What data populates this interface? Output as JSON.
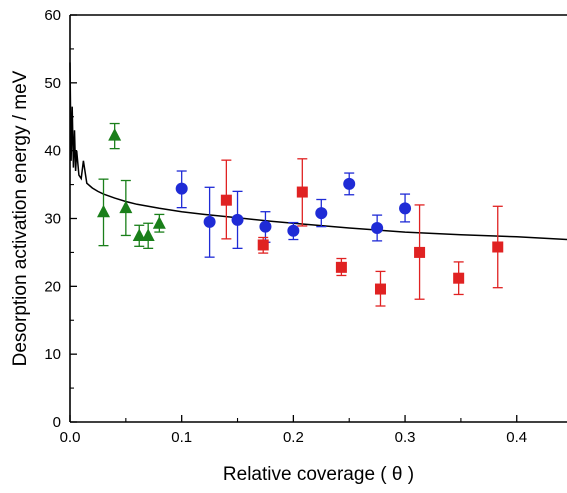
{
  "chart_data": {
    "type": "scatter",
    "xlabel": "Relative coverage ( θ )",
    "ylabel": "Desorption activation energy / meV",
    "xlim": [
      0,
      0.445
    ],
    "ylim": [
      0,
      60
    ],
    "x_ticks": [
      0.0,
      0.1,
      0.2,
      0.3,
      0.4
    ],
    "x_tick_labels": [
      "0.0",
      "0.1",
      "0.2",
      "0.3",
      "0.4"
    ],
    "y_ticks": [
      0,
      10,
      20,
      30,
      40,
      50,
      60
    ],
    "y_tick_labels": [
      "0",
      "10",
      "20",
      "30",
      "40",
      "50",
      "60"
    ],
    "grid": false,
    "series": [
      {
        "marker": "triangle",
        "color": "#1a7f1a",
        "points": [
          {
            "x": 0.03,
            "y": 31.0,
            "lo": 26.0,
            "hi": 35.8
          },
          {
            "x": 0.04,
            "y": 42.3,
            "lo": 40.3,
            "hi": 44.0
          },
          {
            "x": 0.05,
            "y": 31.6,
            "lo": 27.5,
            "hi": 35.6
          },
          {
            "x": 0.062,
            "y": 27.5,
            "lo": 25.9,
            "hi": 29.0
          },
          {
            "x": 0.07,
            "y": 27.5,
            "lo": 25.6,
            "hi": 29.3
          },
          {
            "x": 0.08,
            "y": 29.3,
            "lo": 28.0,
            "hi": 30.6
          }
        ]
      },
      {
        "marker": "circle",
        "color": "#1f2bd6",
        "points": [
          {
            "x": 0.1,
            "y": 34.4,
            "lo": 31.6,
            "hi": 37.0
          },
          {
            "x": 0.125,
            "y": 29.5,
            "lo": 24.3,
            "hi": 34.6
          },
          {
            "x": 0.15,
            "y": 29.8,
            "lo": 25.6,
            "hi": 34.0
          },
          {
            "x": 0.175,
            "y": 28.8,
            "lo": 26.5,
            "hi": 31.0
          },
          {
            "x": 0.2,
            "y": 28.2,
            "lo": 26.9,
            "hi": 29.4
          },
          {
            "x": 0.225,
            "y": 30.8,
            "lo": 28.8,
            "hi": 32.8
          },
          {
            "x": 0.25,
            "y": 35.1,
            "lo": 33.5,
            "hi": 36.7
          },
          {
            "x": 0.275,
            "y": 28.6,
            "lo": 26.7,
            "hi": 30.5
          },
          {
            "x": 0.3,
            "y": 31.5,
            "lo": 29.5,
            "hi": 33.6
          }
        ]
      },
      {
        "marker": "square",
        "color": "#e02222",
        "points": [
          {
            "x": 0.14,
            "y": 32.7,
            "lo": 27.0,
            "hi": 38.6
          },
          {
            "x": 0.173,
            "y": 26.1,
            "lo": 24.9,
            "hi": 27.2
          },
          {
            "x": 0.208,
            "y": 33.9,
            "lo": 28.9,
            "hi": 38.8
          },
          {
            "x": 0.243,
            "y": 22.8,
            "lo": 21.6,
            "hi": 24.1
          },
          {
            "x": 0.278,
            "y": 19.6,
            "lo": 17.1,
            "hi": 22.2
          },
          {
            "x": 0.313,
            "y": 25.0,
            "lo": 18.1,
            "hi": 32.0
          },
          {
            "x": 0.348,
            "y": 21.2,
            "lo": 18.8,
            "hi": 23.6
          },
          {
            "x": 0.383,
            "y": 25.8,
            "lo": 19.8,
            "hi": 31.8
          }
        ]
      }
    ],
    "curve": {
      "color": "#000000",
      "x": [
        0.0,
        0.001,
        0.002,
        0.003,
        0.004,
        0.005,
        0.006,
        0.008,
        0.01,
        0.012,
        0.015,
        0.02,
        0.025,
        0.03,
        0.04,
        0.05,
        0.06,
        0.08,
        0.1,
        0.12,
        0.15,
        0.18,
        0.2,
        0.25,
        0.3,
        0.35,
        0.4,
        0.445
      ],
      "y": [
        53.0,
        38.5,
        46.5,
        37.5,
        43.0,
        37.0,
        40.0,
        36.4,
        35.9,
        38.5,
        35.2,
        34.5,
        34.0,
        33.6,
        33.0,
        32.5,
        32.1,
        31.5,
        31.0,
        30.6,
        30.1,
        29.6,
        29.3,
        28.6,
        28.0,
        27.6,
        27.3,
        26.9
      ]
    }
  }
}
